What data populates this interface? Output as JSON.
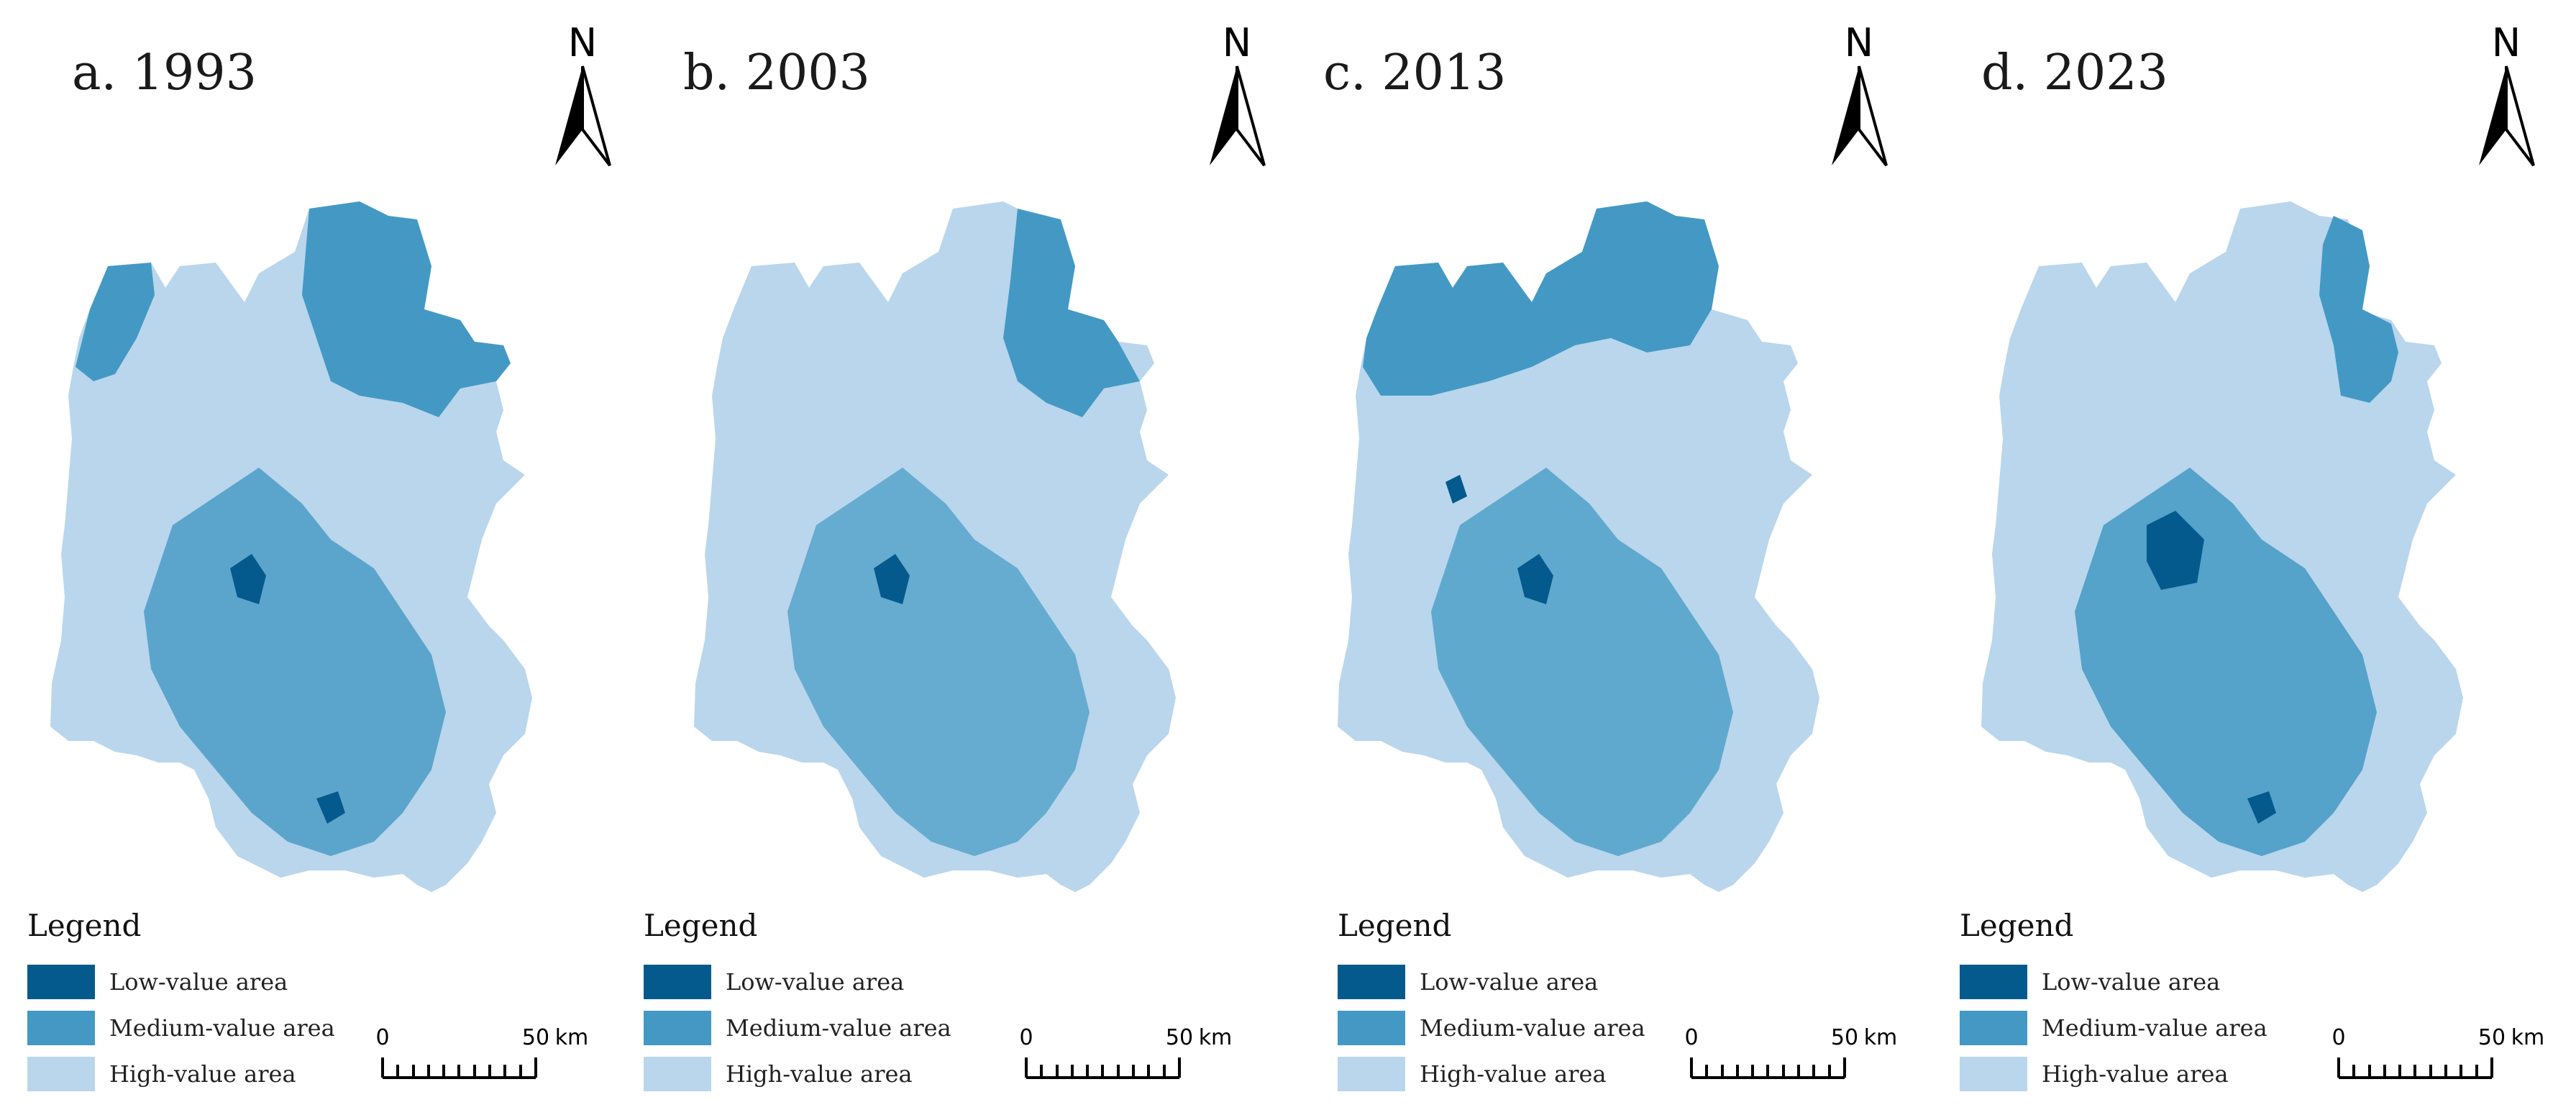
{
  "legend": {
    "title": "Legend",
    "items": [
      {
        "label": "Low-value area",
        "color": "#045a8d"
      },
      {
        "label": "Medium-value area",
        "color": "#4399c4"
      },
      {
        "label": "High-value area",
        "color": "#b9d6ec"
      }
    ]
  },
  "north_arrow": {
    "label": "N"
  },
  "scale_bar": {
    "start": "0",
    "end": "50",
    "unit": "km"
  },
  "panels": [
    {
      "title": "a. 1993"
    },
    {
      "title": "b. 2003"
    },
    {
      "title": "c. 2013"
    },
    {
      "title": "d. 2023"
    }
  ]
}
